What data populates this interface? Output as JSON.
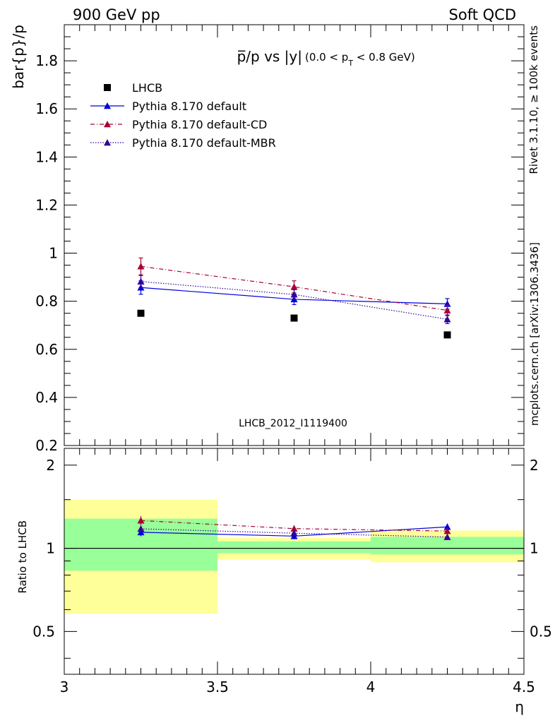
{
  "header": {
    "left": "900 GeV pp",
    "right": "Soft QCD"
  },
  "side": {
    "rivet": "Rivet 3.1.10, ≥ 100k events",
    "mcplots": "mcplots.cern.ch [arXiv:1306.3436]"
  },
  "colors": {
    "data": "#000000",
    "default": "#0000dd",
    "cd": "#aa0033",
    "mbr": "#330099",
    "band_inner": "#99ff99",
    "band_outer": "#ffff99",
    "watermark": "#888888"
  },
  "chart_data": {
    "type": "line",
    "title_main": "p̅/p vs |y|",
    "title_sub": "(0.0 < p",
    "title_sub_idx": "T",
    "title_sub_end": " < 0.8 GeV)",
    "ylabel": "bar{p}/p",
    "ratio_ylabel": "Ratio to LHCB",
    "xlabel": "η",
    "watermark": "LHCB_2012_I1119400",
    "xlim": [
      3.0,
      4.5
    ],
    "ylim": [
      0.2,
      1.95
    ],
    "ratio_ylim": [
      0.35,
      2.3
    ],
    "x_ticks": [
      "3",
      "3.5",
      "4",
      "4.5"
    ],
    "y_ticks": [
      "0.2",
      "0.4",
      "0.6",
      "0.8",
      "1",
      "1.2",
      "1.4",
      "1.6",
      "1.8"
    ],
    "ratio_y_ticks": [
      "0.5",
      "1",
      "2"
    ],
    "bins": [
      {
        "lo": 3.0,
        "hi": 3.5,
        "x": 3.25
      },
      {
        "lo": 3.5,
        "hi": 4.0,
        "x": 3.75
      },
      {
        "lo": 4.0,
        "hi": 4.5,
        "x": 4.25
      }
    ],
    "data": {
      "name": "LHCB",
      "values": [
        0.75,
        0.73,
        0.66
      ]
    },
    "series": [
      {
        "name": "Pythia 8.170 default",
        "style": "solid",
        "color_key": "default",
        "values": [
          0.857,
          0.808,
          0.789
        ],
        "errors": [
          0.028,
          0.022,
          0.022
        ]
      },
      {
        "name": "Pythia 8.170 default-CD",
        "style": "dashdot",
        "color_key": "cd",
        "values": [
          0.945,
          0.86,
          0.762
        ],
        "errors": [
          0.035,
          0.025,
          0.022
        ]
      },
      {
        "name": "Pythia 8.170 default-MBR",
        "style": "dotted",
        "color_key": "mbr",
        "values": [
          0.882,
          0.828,
          0.725
        ],
        "errors": [
          0.025,
          0.02,
          0.018
        ]
      }
    ],
    "ratio_bands": [
      {
        "inner": [
          0.83,
          1.28
        ],
        "outer": [
          0.58,
          1.5
        ]
      },
      {
        "inner": [
          0.96,
          1.06
        ],
        "outer": [
          0.91,
          1.09
        ]
      },
      {
        "inner": [
          0.95,
          1.1
        ],
        "outer": [
          0.89,
          1.16
        ]
      }
    ]
  }
}
